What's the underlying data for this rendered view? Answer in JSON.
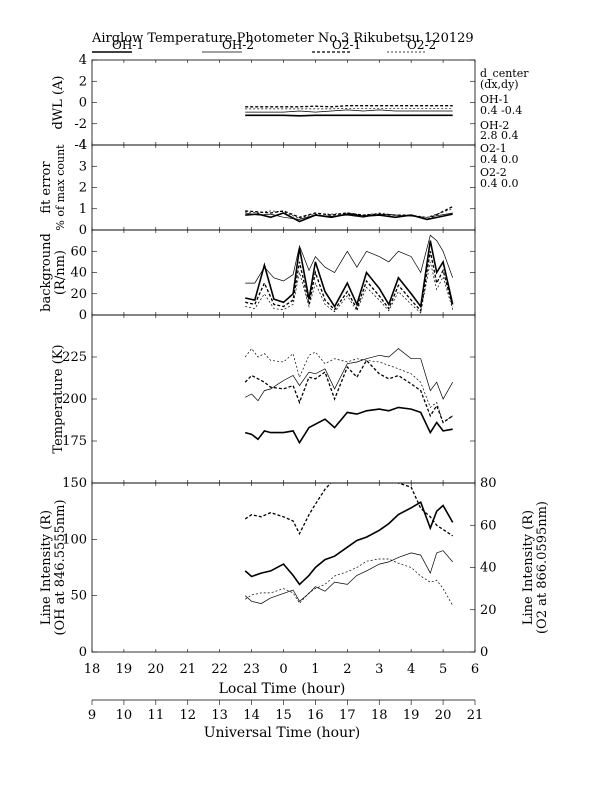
{
  "header": {
    "title": "Airglow Temperature Photometer No.3  Rikubetsu    120129"
  },
  "legend": [
    {
      "label": "OH-1",
      "style": "solid-thick"
    },
    {
      "label": "OH-2",
      "style": "solid-thin"
    },
    {
      "label": "O2-1",
      "style": "dashed-thick"
    },
    {
      "label": "O2-2",
      "style": "dashed-thin"
    }
  ],
  "side_info": {
    "heading": "d_center",
    "subheading": "(dx,dy)",
    "entries": [
      {
        "name": "OH-1",
        "value": "0.4   -0.4"
      },
      {
        "name": "OH-2",
        "value": "2.8   0.4"
      },
      {
        "name": "O2-1",
        "value": "0.4   0.0"
      },
      {
        "name": "O2-2",
        "value": "0.4   0.0"
      }
    ]
  },
  "axes": {
    "local_time": {
      "label": "Local Time (hour)",
      "ticks": [
        "18",
        "19",
        "20",
        "21",
        "22",
        "23",
        "0",
        "1",
        "2",
        "3",
        "4",
        "5",
        "6"
      ]
    },
    "universal_time": {
      "label": "Universal Time (hour)",
      "ticks": [
        "9",
        "10",
        "11",
        "12",
        "13",
        "14",
        "15",
        "16",
        "17",
        "18",
        "19",
        "20",
        "21"
      ]
    }
  },
  "chart_data": [
    {
      "type": "line",
      "panel": "dwl",
      "ylabel": "dWL (A)",
      "ylim": [
        -4,
        4
      ],
      "yticks": [
        -4,
        -2,
        0,
        2,
        4
      ],
      "x_unit": "Universal Time (hour)",
      "series": [
        {
          "name": "OH-1",
          "x": [
            13.8,
            14.2,
            14.6,
            15.0,
            15.5,
            16.0,
            16.5,
            17.0,
            17.5,
            18.0,
            18.5,
            19.0,
            19.5,
            20.3
          ],
          "y": [
            -1.2,
            -1.2,
            -1.2,
            -1.2,
            -1.25,
            -1.2,
            -1.2,
            -1.2,
            -1.2,
            -1.2,
            -1.2,
            -1.2,
            -1.2,
            -1.2
          ]
        },
        {
          "name": "OH-2",
          "x": [
            13.8,
            14.2,
            14.6,
            15.0,
            15.5,
            16.0,
            16.5,
            17.0,
            17.5,
            18.0,
            18.5,
            19.0,
            19.5,
            20.3
          ],
          "y": [
            -0.9,
            -0.9,
            -0.9,
            -0.9,
            -0.8,
            -0.9,
            -0.8,
            -0.7,
            -0.8,
            -0.7,
            -0.8,
            -0.8,
            -0.8,
            -0.8
          ]
        },
        {
          "name": "O2-1",
          "x": [
            13.8,
            14.2,
            14.6,
            15.0,
            15.5,
            16.0,
            16.5,
            17.0,
            17.5,
            18.0,
            18.5,
            19.0,
            19.5,
            20.3
          ],
          "y": [
            -0.4,
            -0.4,
            -0.4,
            -0.4,
            -0.4,
            -0.35,
            -0.4,
            -0.3,
            -0.3,
            -0.3,
            -0.3,
            -0.3,
            -0.3,
            -0.3
          ]
        },
        {
          "name": "O2-2",
          "x": [
            13.8,
            14.2,
            14.6,
            15.0,
            15.5,
            16.0,
            16.5,
            17.0,
            17.5,
            18.0,
            18.5,
            19.0,
            19.5,
            20.3
          ],
          "y": [
            -0.6,
            -0.6,
            -0.6,
            -0.6,
            -0.6,
            -0.6,
            -0.6,
            -0.55,
            -0.55,
            -0.55,
            -0.55,
            -0.55,
            -0.55,
            -0.55
          ]
        }
      ]
    },
    {
      "type": "line",
      "panel": "fit_error",
      "ylabel": "fit error",
      "ylabel2": "% of max count",
      "ylim": [
        0,
        4
      ],
      "yticks": [
        0,
        1,
        2,
        3,
        4
      ],
      "x_unit": "Universal Time (hour)",
      "series": [
        {
          "name": "OH-1",
          "x": [
            13.8,
            14.2,
            14.6,
            15.0,
            15.5,
            16.0,
            16.5,
            17.0,
            17.5,
            18.0,
            18.5,
            19.0,
            19.5,
            20.3
          ],
          "y": [
            0.7,
            0.75,
            0.6,
            0.8,
            0.4,
            0.7,
            0.6,
            0.75,
            0.65,
            0.7,
            0.6,
            0.7,
            0.5,
            0.75
          ]
        },
        {
          "name": "OH-2",
          "x": [
            13.8,
            14.2,
            14.6,
            15.0,
            15.5,
            16.0,
            16.5,
            17.0,
            17.5,
            18.0,
            18.5,
            19.0,
            19.5,
            20.3
          ],
          "y": [
            0.8,
            0.7,
            0.75,
            0.6,
            0.5,
            0.7,
            0.65,
            0.7,
            0.6,
            0.75,
            0.7,
            0.65,
            0.6,
            0.8
          ]
        },
        {
          "name": "O2-1",
          "x": [
            13.8,
            14.2,
            14.6,
            15.0,
            15.5,
            16.0,
            16.5,
            17.0,
            17.5,
            18.0,
            18.5,
            19.0,
            19.5,
            20.3
          ],
          "y": [
            0.9,
            0.85,
            0.8,
            0.9,
            0.6,
            0.8,
            0.7,
            0.8,
            0.7,
            0.75,
            0.7,
            0.7,
            0.5,
            1.1
          ]
        },
        {
          "name": "O2-2",
          "x": [
            13.8,
            14.2,
            14.6,
            15.0,
            15.5,
            16.0,
            16.5,
            17.0,
            17.5,
            18.0,
            18.5,
            19.0,
            19.5,
            20.3
          ],
          "y": [
            0.85,
            0.8,
            0.9,
            0.85,
            0.55,
            0.75,
            0.75,
            0.8,
            0.7,
            0.8,
            0.7,
            0.7,
            0.6,
            1.0
          ]
        }
      ]
    },
    {
      "type": "line",
      "panel": "background",
      "ylabel": "background",
      "ylabel2": "(R/nm)",
      "ylim": [
        0,
        80
      ],
      "yticks": [
        0,
        20,
        40,
        60
      ],
      "x_unit": "Universal Time (hour)",
      "series": [
        {
          "name": "OH-1",
          "x": [
            13.8,
            14.1,
            14.4,
            14.7,
            15.0,
            15.3,
            15.5,
            15.8,
            16.0,
            16.3,
            16.6,
            17.0,
            17.3,
            17.6,
            18.0,
            18.3,
            18.6,
            19.0,
            19.3,
            19.6,
            19.8,
            20.0,
            20.3
          ],
          "y": [
            16,
            14,
            47,
            15,
            12,
            20,
            63,
            15,
            50,
            22,
            8,
            30,
            10,
            40,
            25,
            10,
            35,
            20,
            8,
            70,
            40,
            50,
            10
          ]
        },
        {
          "name": "OH-2",
          "x": [
            13.8,
            14.1,
            14.4,
            14.7,
            15.0,
            15.3,
            15.5,
            15.8,
            16.0,
            16.3,
            16.6,
            17.0,
            17.3,
            17.6,
            18.0,
            18.3,
            18.6,
            19.0,
            19.3,
            19.6,
            19.8,
            20.0,
            20.3
          ],
          "y": [
            30,
            30,
            45,
            35,
            32,
            38,
            65,
            42,
            55,
            45,
            40,
            60,
            45,
            60,
            55,
            50,
            60,
            55,
            40,
            75,
            70,
            60,
            35
          ]
        },
        {
          "name": "O2-1",
          "x": [
            13.8,
            14.1,
            14.4,
            14.7,
            15.0,
            15.3,
            15.5,
            15.8,
            16.0,
            16.3,
            16.6,
            17.0,
            17.3,
            17.6,
            18.0,
            18.3,
            18.6,
            19.0,
            19.3,
            19.6,
            19.8,
            20.0,
            20.3
          ],
          "y": [
            12,
            10,
            30,
            10,
            8,
            14,
            50,
            10,
            40,
            14,
            5,
            22,
            6,
            32,
            18,
            6,
            28,
            14,
            4,
            60,
            30,
            42,
            8
          ]
        },
        {
          "name": "O2-2",
          "x": [
            13.8,
            14.1,
            14.4,
            14.7,
            15.0,
            15.3,
            15.5,
            15.8,
            16.0,
            16.3,
            16.6,
            17.0,
            17.3,
            17.6,
            18.0,
            18.3,
            18.6,
            19.0,
            19.3,
            19.6,
            19.8,
            20.0,
            20.3
          ],
          "y": [
            8,
            6,
            20,
            6,
            5,
            10,
            40,
            8,
            30,
            10,
            3,
            18,
            4,
            26,
            14,
            4,
            22,
            10,
            2,
            50,
            24,
            36,
            5
          ]
        }
      ]
    },
    {
      "type": "line",
      "panel": "temperature",
      "ylabel": "Temperature (K)",
      "ylim": [
        150,
        250
      ],
      "yticks": [
        175,
        200,
        225
      ],
      "x_unit": "Universal Time (hour)",
      "series": [
        {
          "name": "OH-1",
          "x": [
            13.8,
            14.0,
            14.2,
            14.4,
            14.6,
            15.0,
            15.3,
            15.5,
            15.8,
            16.0,
            16.3,
            16.6,
            17.0,
            17.3,
            17.6,
            18.0,
            18.3,
            18.6,
            19.0,
            19.3,
            19.6,
            19.8,
            20.0,
            20.3
          ],
          "y": [
            180,
            179,
            176,
            181,
            180,
            180,
            181,
            174,
            183,
            185,
            188,
            183,
            192,
            191,
            193,
            194,
            193,
            195,
            194,
            192,
            180,
            186,
            181,
            182
          ]
        },
        {
          "name": "OH-2",
          "x": [
            13.8,
            14.0,
            14.2,
            14.4,
            14.6,
            15.0,
            15.3,
            15.5,
            15.8,
            16.0,
            16.3,
            16.6,
            17.0,
            17.3,
            17.6,
            18.0,
            18.3,
            18.6,
            19.0,
            19.3,
            19.6,
            19.8,
            20.0,
            20.3
          ],
          "y": [
            201,
            203,
            199,
            205,
            206,
            211,
            214,
            208,
            216,
            215,
            218,
            206,
            221,
            222,
            224,
            226,
            225,
            230,
            224,
            224,
            205,
            210,
            200,
            210
          ]
        },
        {
          "name": "O2-1",
          "x": [
            13.8,
            14.0,
            14.2,
            14.4,
            14.6,
            15.0,
            15.3,
            15.5,
            15.8,
            16.0,
            16.3,
            16.6,
            17.0,
            17.3,
            17.6,
            18.0,
            18.3,
            18.6,
            19.0,
            19.3,
            19.6,
            19.8,
            20.0,
            20.3
          ],
          "y": [
            210,
            214,
            212,
            210,
            207,
            206,
            208,
            198,
            213,
            212,
            216,
            200,
            219,
            213,
            223,
            215,
            212,
            214,
            209,
            205,
            190,
            196,
            186,
            190
          ]
        },
        {
          "name": "O2-2",
          "x": [
            13.8,
            14.0,
            14.2,
            14.4,
            14.6,
            15.0,
            15.3,
            15.5,
            15.8,
            16.0,
            16.3,
            16.6,
            17.0,
            17.3,
            17.6,
            18.0,
            18.3,
            18.6,
            19.0,
            19.3,
            19.6,
            19.8,
            20.0,
            20.3
          ],
          "y": [
            225,
            230,
            225,
            227,
            223,
            222,
            227,
            213,
            226,
            228,
            221,
            224,
            222,
            224,
            223,
            222,
            220,
            218,
            215,
            210,
            195,
            198,
            186,
            190
          ]
        }
      ]
    },
    {
      "type": "line",
      "panel": "line_intensity",
      "ylabel": "Line Intensity (R)",
      "ylabel2": "(OH at 846.5555nm)",
      "ylim": [
        0,
        150
      ],
      "yticks": [
        0,
        50,
        100,
        150
      ],
      "y2label": "Line Intensity (R)",
      "y2label2": "(O2 at 866.0595nm)",
      "y2lim": [
        0,
        80
      ],
      "y2ticks": [
        0,
        20,
        40,
        60,
        80
      ],
      "x_unit": "Universal Time (hour)",
      "series": [
        {
          "name": "OH-1",
          "axis": "left",
          "x": [
            13.8,
            14.0,
            14.3,
            14.6,
            15.0,
            15.3,
            15.5,
            15.8,
            16.0,
            16.3,
            16.6,
            17.0,
            17.3,
            17.6,
            18.0,
            18.3,
            18.6,
            19.0,
            19.3,
            19.6,
            19.8,
            20.0,
            20.3
          ],
          "y": [
            72,
            67,
            70,
            72,
            78,
            68,
            60,
            68,
            75,
            82,
            85,
            93,
            99,
            102,
            108,
            114,
            122,
            128,
            133,
            110,
            125,
            130,
            115
          ]
        },
        {
          "name": "OH-2",
          "axis": "left",
          "x": [
            13.8,
            14.0,
            14.3,
            14.6,
            15.0,
            15.3,
            15.5,
            15.8,
            16.0,
            16.3,
            16.6,
            17.0,
            17.3,
            17.6,
            18.0,
            18.3,
            18.6,
            19.0,
            19.3,
            19.6,
            19.8,
            20.0,
            20.3
          ],
          "y": [
            50,
            45,
            43,
            48,
            52,
            55,
            45,
            52,
            58,
            54,
            62,
            60,
            68,
            72,
            78,
            80,
            84,
            88,
            86,
            70,
            88,
            90,
            80
          ]
        },
        {
          "name": "O2-1",
          "axis": "right",
          "x": [
            13.8,
            14.0,
            14.3,
            14.6,
            15.0,
            15.3,
            15.5,
            15.8,
            16.0,
            16.3,
            16.6,
            17.0,
            17.3,
            17.6,
            18.0,
            18.3,
            18.6,
            19.0,
            19.3,
            19.6,
            19.8,
            20.0,
            20.3
          ],
          "y": [
            63,
            65,
            64,
            66,
            64,
            62,
            56,
            65,
            70,
            77,
            82,
            86,
            88,
            90,
            88,
            85,
            80,
            78,
            68,
            64,
            60,
            58,
            55
          ]
        },
        {
          "name": "O2-2",
          "axis": "right",
          "x": [
            13.8,
            14.0,
            14.3,
            14.6,
            15.0,
            15.3,
            15.5,
            15.8,
            16.0,
            16.3,
            16.6,
            17.0,
            17.3,
            17.6,
            18.0,
            18.3,
            18.6,
            19.0,
            19.3,
            19.6,
            19.8,
            20.0,
            20.3
          ],
          "y": [
            25,
            27,
            28,
            28,
            30,
            28,
            23,
            28,
            30,
            32,
            36,
            38,
            40,
            43,
            44,
            44,
            42,
            40,
            36,
            33,
            34,
            30,
            22
          ]
        }
      ]
    }
  ]
}
